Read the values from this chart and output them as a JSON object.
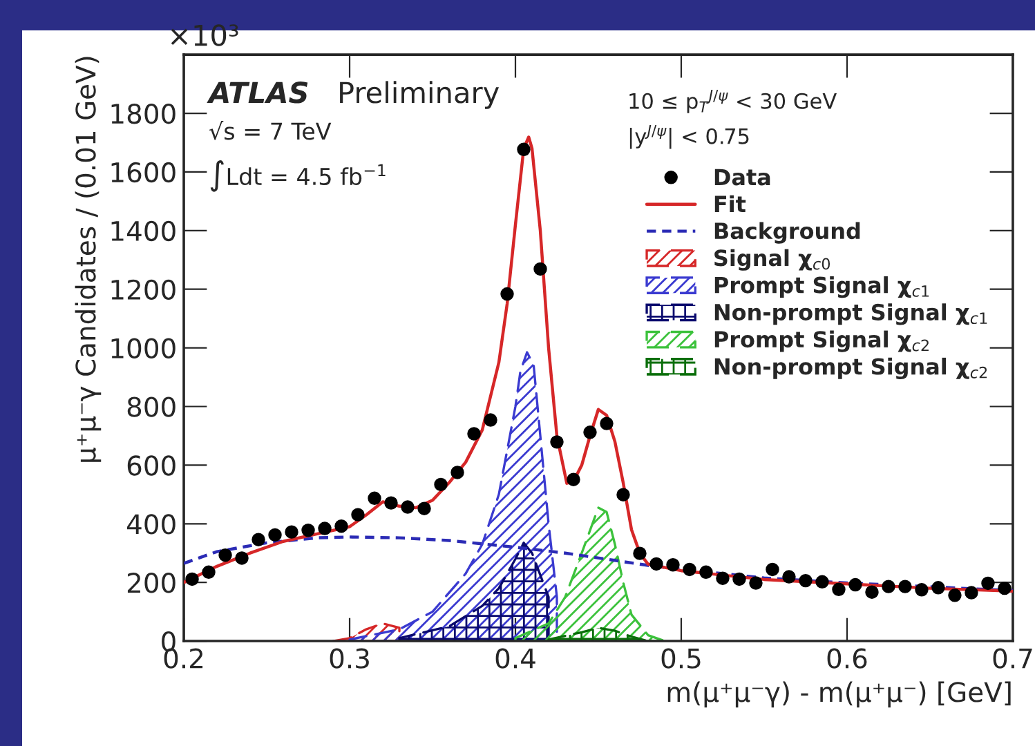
{
  "chart_data": {
    "type": "line",
    "xlabel": "m(μ⁺μ⁻γ) - m(μ⁺μ⁻) [GeV]",
    "ylabel": "μ⁺μ⁻γ Candidates / (0.01 GeV)",
    "annotations": [
      "×10³",
      "ATLAS",
      "Preliminary",
      "√s = 7 TeV",
      "∫Ldt = 4.5 fb$^{−1}$",
      "10 ≤ p$_{T}$$^{J/ψ}$ < 30 GeV",
      "|y$^{J/ψ}$| < 0.75"
    ],
    "xlim": [
      0.2,
      0.7
    ],
    "xticks": [
      0.2,
      0.3,
      0.4,
      0.5,
      0.6,
      0.7
    ],
    "ylim": [
      0,
      2000
    ],
    "yticks": [
      0,
      200,
      400,
      600,
      800,
      1000,
      1200,
      1400,
      1600,
      1800
    ],
    "grid": false,
    "legend": "top right",
    "series": [
      {
        "name": "Signal χ$_{c0}$",
        "type": "area",
        "color": "#d62728",
        "x": [
          0.29,
          0.3,
          0.31,
          0.32,
          0.33,
          0.34,
          0.35,
          0.36
        ],
        "values": [
          0,
          10,
          40,
          60,
          45,
          null,
          5,
          0
        ]
      },
      {
        "name": "Prompt Signal χ$_{c1}$",
        "type": "area",
        "color": "#3a3ad0",
        "x": [
          0.3,
          0.33,
          0.35,
          0.37,
          0.38,
          0.39,
          0.4,
          0.403,
          0.407,
          0.411,
          0.415,
          0.42,
          0.425
        ],
        "values": [
          5,
          40,
          100,
          230,
          330,
          500,
          800,
          920,
          985,
          940,
          700,
          400,
          150
        ]
      },
      {
        "name": "Non-prompt Signal χ$_{c1}$",
        "type": "area",
        "color": "#0a0a6e",
        "x": [
          0.33,
          0.36,
          0.38,
          0.39,
          0.4,
          0.405,
          0.41,
          0.42
        ],
        "values": [
          10,
          50,
          120,
          180,
          280,
          335,
          300,
          150
        ]
      },
      {
        "name": "Prompt Signal χ$_{c2}$",
        "type": "area",
        "color": "#3cc23c",
        "x": [
          0.4,
          0.42,
          0.43,
          0.44,
          0.45,
          0.455,
          0.46,
          0.465,
          0.47,
          0.48,
          0.49
        ],
        "values": [
          10,
          60,
          150,
          300,
          455,
          440,
          330,
          200,
          90,
          20,
          0
        ]
      },
      {
        "name": "Non-prompt Signal χ$_{c2}$",
        "type": "area",
        "color": "#0a6e0a",
        "x": [
          0.42,
          0.44,
          0.45,
          0.46,
          0.47,
          0.48
        ],
        "values": [
          5,
          30,
          45,
          35,
          15,
          0
        ]
      },
      {
        "name": "Background",
        "type": "line",
        "line_style": "dashed",
        "color": "#2b2bb5",
        "x": [
          0.2,
          0.22,
          0.25,
          0.28,
          0.3,
          0.33,
          0.36,
          0.4,
          0.43,
          0.46,
          0.48,
          0.5,
          0.55,
          0.6,
          0.65,
          0.7
        ],
        "values": [
          265,
          305,
          335,
          352,
          355,
          352,
          343,
          320,
          300,
          275,
          258,
          245,
          215,
          198,
          185,
          172
        ]
      },
      {
        "name": "Fit",
        "color": "#d62728",
        "x": [
          0.2,
          0.22,
          0.24,
          0.26,
          0.28,
          0.3,
          0.31,
          0.32,
          0.33,
          0.34,
          0.35,
          0.36,
          0.37,
          0.38,
          0.39,
          0.395,
          0.4,
          0.405,
          0.408,
          0.41,
          0.415,
          0.42,
          0.425,
          0.431,
          0.435,
          0.44,
          0.445,
          0.45,
          0.455,
          0.46,
          0.465,
          0.47,
          0.475,
          0.48,
          0.5,
          0.55,
          0.6,
          0.65,
          0.7
        ],
        "values": [
          200,
          255,
          300,
          340,
          365,
          390,
          430,
          475,
          460,
          455,
          480,
          540,
          610,
          720,
          950,
          1150,
          1420,
          1680,
          1719,
          1680,
          1400,
          1000,
          700,
          538,
          545,
          600,
          700,
          790,
          770,
          680,
          540,
          380,
          300,
          262,
          240,
          210,
          195,
          180,
          170
        ]
      },
      {
        "name": "Data",
        "type": "scatter",
        "marker": "circle",
        "color": "#000000",
        "x": [
          0.205,
          0.215,
          0.225,
          0.235,
          0.245,
          0.255,
          0.265,
          0.275,
          0.285,
          0.295,
          0.305,
          0.315,
          0.325,
          0.335,
          0.345,
          0.355,
          0.365,
          0.375,
          0.385,
          0.395,
          0.405,
          0.415,
          0.425,
          0.435,
          0.445,
          0.455,
          0.465,
          0.475,
          0.485,
          0.495,
          0.505,
          0.515,
          0.525,
          0.535,
          0.545,
          0.555,
          0.565,
          0.575,
          0.585,
          0.595,
          0.605,
          0.615,
          0.625,
          0.635,
          0.645,
          0.655,
          0.665,
          0.675,
          0.685,
          0.695
        ],
        "values": [
          211,
          235,
          293,
          283,
          346,
          362,
          372,
          378,
          384,
          392,
          431,
          487,
          471,
          457,
          452,
          534,
          575,
          707,
          754,
          1184,
          1677,
          1269,
          679,
          551,
          712,
          742,
          499,
          299,
          263,
          260,
          244,
          235,
          214,
          211,
          198,
          244,
          219,
          206,
          202,
          176,
          192,
          167,
          186,
          186,
          175,
          182,
          156,
          165,
          197,
          180
        ]
      }
    ]
  }
}
